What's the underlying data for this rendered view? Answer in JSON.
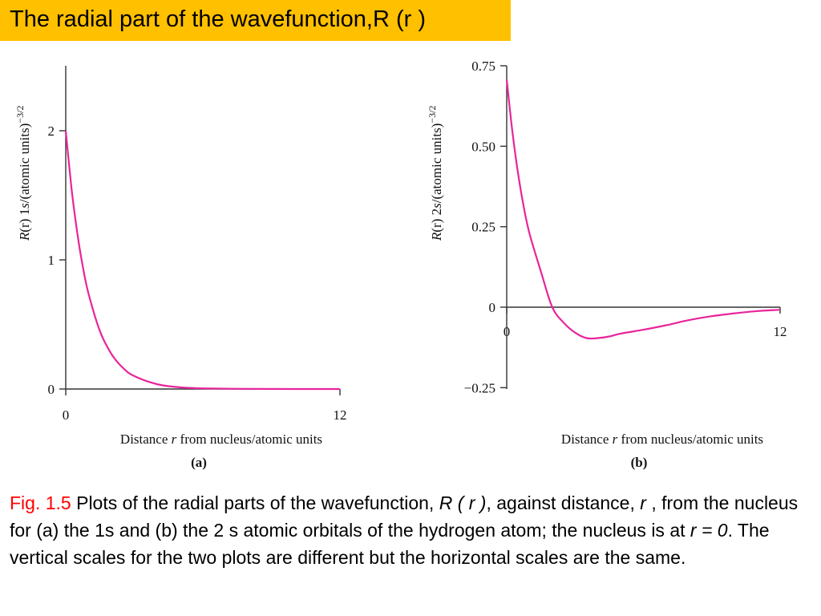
{
  "title": "The radial part of the wavefunction,R (r )",
  "colors": {
    "title_bg": "#ffc000",
    "curve": "#e8259b",
    "caption_label": "#ff0000"
  },
  "chart_data": [
    {
      "type": "line",
      "panel": "(a)",
      "ylabel": "R(r) 1s/(atomic units)⁻³ᐟ²",
      "ylabel_parts": {
        "main": "R(r) 1",
        "italic": "s",
        "rest": "/(atomic units)",
        "sup": "−3/2"
      },
      "xlabel_parts": {
        "pre": "Distance ",
        "italic": "r",
        "post": " from nucleus/atomic units"
      },
      "xlim": [
        0,
        12
      ],
      "ylim": [
        0,
        2.5
      ],
      "x_ticks": [
        "0",
        "12"
      ],
      "y_ticks": [
        "0",
        "1",
        "2"
      ],
      "series": [
        {
          "x": [
            0,
            0.25,
            0.5,
            0.75,
            1,
            1.5,
            2,
            2.5,
            3,
            4,
            5,
            6,
            8,
            10,
            12
          ],
          "y": [
            2,
            1.558,
            1.213,
            0.945,
            0.736,
            0.446,
            0.271,
            0.164,
            0.1,
            0.037,
            0.013,
            0.005,
            0.001,
            0,
            0
          ]
        }
      ]
    },
    {
      "type": "line",
      "panel": "(b)",
      "ylabel_parts": {
        "main": "R(r) 2",
        "italic": "s",
        "rest": "/(atomic units)",
        "sup": "−3/2"
      },
      "xlabel_parts": {
        "pre": "Distance ",
        "italic": "r",
        "post": " from nucleus/atomic units"
      },
      "xlim": [
        0,
        12
      ],
      "ylim": [
        -0.25,
        0.75
      ],
      "x_ticks": [
        "0",
        "12"
      ],
      "y_ticks": [
        "0.75",
        "0.50",
        "0.25",
        "0",
        "−0.25"
      ],
      "series": [
        {
          "x": [
            0,
            0.25,
            0.5,
            0.75,
            1,
            1.5,
            2,
            2.5,
            3,
            3.5,
            4,
            4.5,
            5,
            6,
            7,
            8,
            9,
            10,
            11,
            12
          ],
          "y": [
            0.707,
            0.545,
            0.415,
            0.311,
            0.229,
            0.111,
            0,
            -0.048,
            -0.079,
            -0.096,
            -0.096,
            -0.091,
            -0.082,
            -0.07,
            -0.056,
            -0.04,
            -0.028,
            -0.019,
            -0.012,
            -0.008
          ]
        }
      ]
    }
  ],
  "caption": {
    "fig": "Fig. 1.5",
    "t1": " Plots of the radial parts of the wavefunction, ",
    "r_of_r": "R ( r )",
    "t2": ", against distance, ",
    "r": "r",
    "t3": " , from the nucleus for (a) the 1s and (b) the 2 s atomic orbitals of the hydrogen atom; the nucleus is at ",
    "r0": "r = 0",
    "t4": ". The vertical scales for the two plots are different but the horizontal scales are the same."
  }
}
